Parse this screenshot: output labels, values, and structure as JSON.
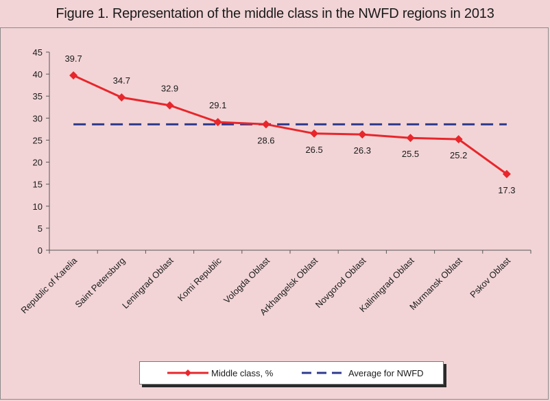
{
  "figure": {
    "title": "Figure 1. Representation of the middle class in the NWFD regions in 2013"
  },
  "chart_data": {
    "type": "line",
    "title": "Figure 1. Representation of the middle class in the NWFD regions in 2013",
    "categories": [
      "Republic of Karelia",
      "Saint Petersburg",
      "Leningrad Oblast",
      "Komi Republic",
      "Vologda Oblast",
      "Arkhangelsk Oblast",
      "Novgorod Oblast",
      "Kaliningrad Oblast",
      "Murmansk Oblast",
      "Pskov Oblast"
    ],
    "series": [
      {
        "name": "Middle class, %",
        "values": [
          39.7,
          34.7,
          32.9,
          29.1,
          28.6,
          26.5,
          26.3,
          25.5,
          25.2,
          17.3
        ],
        "color": "#e8262b",
        "style": "solid-diamond"
      },
      {
        "name": "Average for NWFD",
        "values": [
          28.6,
          28.6,
          28.6,
          28.6,
          28.6,
          28.6,
          28.6,
          28.6,
          28.6,
          28.6
        ],
        "color": "#2e3a8c",
        "style": "dashed"
      }
    ],
    "data_labels": [
      "39.7",
      "34.7",
      "32.9",
      "29.1",
      "28.6",
      "26.5",
      "26.3",
      "25.5",
      "25.2",
      "17.3"
    ],
    "ylim": [
      0,
      45
    ],
    "yticks": [
      0,
      5,
      10,
      15,
      20,
      25,
      30,
      35,
      40,
      45
    ],
    "xlabel": "",
    "ylabel": "",
    "grid": false,
    "legend_position": "bottom"
  }
}
